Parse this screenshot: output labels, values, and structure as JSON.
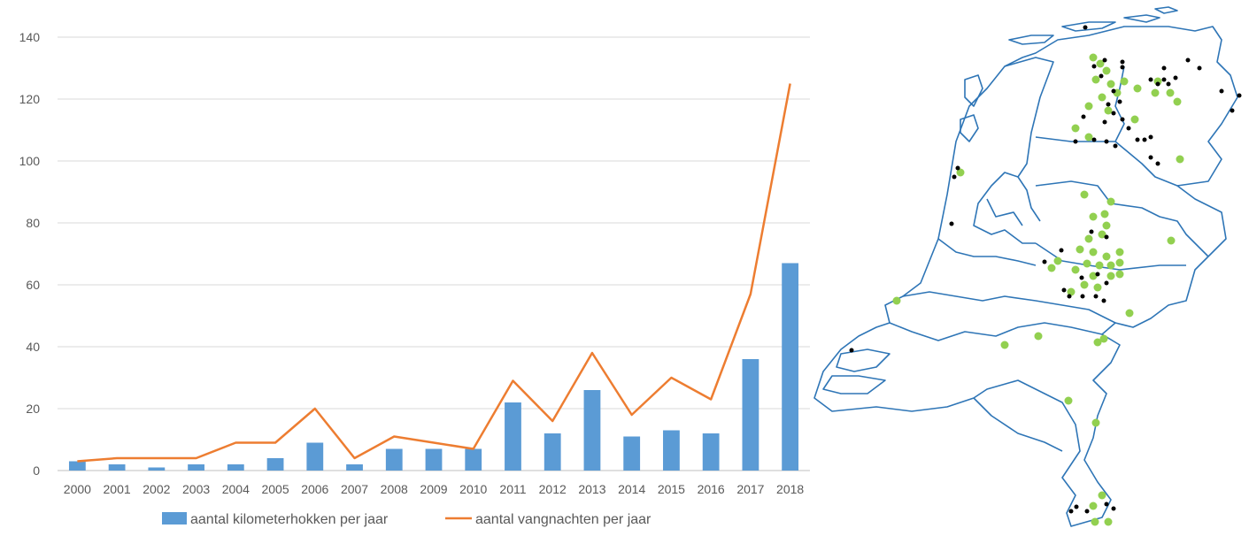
{
  "chart_data": {
    "type": "bar",
    "categories": [
      "2000",
      "2001",
      "2002",
      "2003",
      "2004",
      "2005",
      "2006",
      "2007",
      "2008",
      "2009",
      "2010",
      "2011",
      "2012",
      "2013",
      "2014",
      "2015",
      "2016",
      "2017",
      "2018"
    ],
    "series": [
      {
        "name": "aantal kilometerhokken per jaar",
        "type": "bar",
        "color": "#5B9BD5",
        "values": [
          3,
          2,
          1,
          2,
          2,
          4,
          9,
          2,
          7,
          7,
          7,
          22,
          12,
          26,
          11,
          13,
          12,
          36,
          67
        ]
      },
      {
        "name": "aantal vangnachten per jaar",
        "type": "line",
        "color": "#ED7D31",
        "values": [
          3,
          4,
          4,
          4,
          9,
          9,
          20,
          4,
          11,
          9,
          7,
          29,
          16,
          38,
          18,
          30,
          23,
          57,
          125
        ]
      }
    ],
    "ylim": [
      0,
      140
    ],
    "yticks": [
      "0",
      "20",
      "40",
      "60",
      "80",
      "100",
      "120",
      "140"
    ],
    "grid": true,
    "legend_position": "bottom"
  },
  "map": {
    "type": "map",
    "outline_color": "#2E75B6",
    "marker_colors": {
      "green": "#92D050",
      "black": "#000000"
    }
  }
}
